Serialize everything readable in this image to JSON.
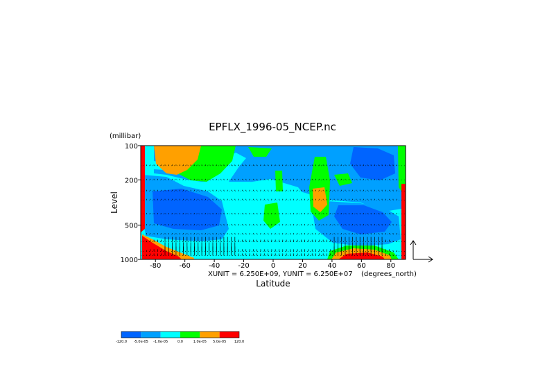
{
  "chart_data": {
    "type": "heatmap",
    "title": "EPFLX_1996-05_NCEP.nc",
    "xlabel": "Latitude",
    "ylabel": "Level",
    "yunit": "(millibar)",
    "xunit_label": "(degrees_north)",
    "vector_scale_text": "XUNIT = 6.250E+09, YUNIT = 6.250E+07",
    "xlim": [
      -90,
      90
    ],
    "ylim": [
      1000,
      100
    ],
    "y_scale": "log",
    "x_ticks": [
      "-80",
      "-60",
      "-40",
      "-20",
      "0",
      "20",
      "40",
      "60",
      "80"
    ],
    "x_tick_values": [
      -80,
      -60,
      -40,
      -20,
      0,
      20,
      40,
      60,
      80
    ],
    "y_ticks": [
      "100",
      "200",
      "500",
      "1000"
    ],
    "y_tick_values": [
      100,
      200,
      500,
      1000
    ],
    "pressure_levels": [
      1000,
      925,
      850,
      700,
      600,
      500,
      400,
      300,
      250,
      200,
      150,
      100
    ],
    "grid": true,
    "colorbar": {
      "labels": [
        "-120.0",
        "-5.0e-05",
        "-1.0e-05",
        "0.0",
        "1.0e-05",
        "5.0e-05",
        "120.0"
      ],
      "colors": [
        "#0064ff",
        "#00a0ff",
        "#00ffff",
        "#00ff00",
        "#ffa000",
        "#ff0000"
      ]
    }
  }
}
